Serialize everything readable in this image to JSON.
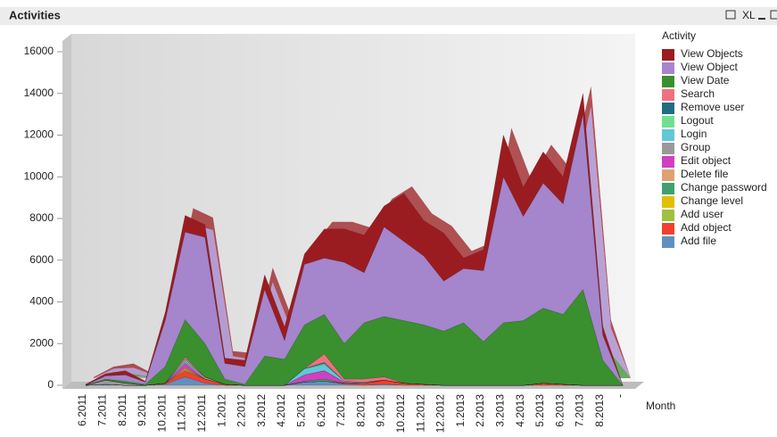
{
  "toolbar": [
    "XL"
  ],
  "chart_data": {
    "type": "area",
    "stacked": true,
    "title": "Activities",
    "xlabel": "Month",
    "legend_title": "Activity",
    "categories": [
      "6.2011",
      "7.2011",
      "8.2011",
      "9.2011",
      "10.2011",
      "11.2011",
      "12.2011",
      "1.2012",
      "2.2012",
      "3.2012",
      "4.2012",
      "5.2012",
      "6.2012",
      "7.2012",
      "8.2012",
      "9.2012",
      "10.2012",
      "11.2012",
      "12.2012",
      "1.2013",
      "2.2013",
      "3.2013",
      "4.2013",
      "5.2013",
      "6.2013",
      "7.2013",
      "8.2013",
      "-"
    ],
    "ylim": [
      0,
      16000
    ],
    "yticks": [
      0,
      2000,
      4000,
      6000,
      8000,
      10000,
      12000,
      14000,
      16000
    ],
    "series": [
      {
        "name": "View Objects",
        "color": "#9b1c20",
        "values": [
          50,
          100,
          200,
          50,
          400,
          800,
          600,
          250,
          300,
          700,
          650,
          500,
          1400,
          1600,
          1800,
          1000,
          2300,
          1700,
          2300,
          500,
          1000,
          2000,
          1400,
          1500,
          1300,
          1000,
          400,
          0
        ]
      },
      {
        "name": "View Object",
        "color": "#a585cc",
        "values": [
          0,
          150,
          300,
          100,
          2200,
          4200,
          5100,
          750,
          850,
          3200,
          900,
          2900,
          2700,
          3900,
          2400,
          4300,
          3800,
          3300,
          2400,
          2600,
          3400,
          7000,
          5000,
          6000,
          5300,
          8400,
          1200,
          0
        ]
      },
      {
        "name": "View Date",
        "color": "#3a8f2e",
        "values": [
          0,
          50,
          100,
          50,
          800,
          1800,
          1600,
          250,
          50,
          1400,
          1250,
          2100,
          1900,
          1700,
          2700,
          2900,
          3000,
          2850,
          2600,
          3000,
          2100,
          3000,
          3100,
          3600,
          3350,
          4600,
          1200,
          0
        ]
      },
      {
        "name": "Search",
        "color": "#f07080",
        "values": [
          0,
          0,
          0,
          0,
          0,
          100,
          0,
          0,
          0,
          0,
          0,
          0,
          400,
          100,
          150,
          150,
          0,
          0,
          0,
          0,
          0,
          0,
          0,
          0,
          0,
          0,
          0,
          0
        ]
      },
      {
        "name": "Remove user",
        "color": "#1f6d80",
        "values": [
          0,
          0,
          0,
          0,
          0,
          0,
          0,
          0,
          0,
          0,
          0,
          0,
          50,
          0,
          0,
          0,
          0,
          0,
          0,
          0,
          0,
          0,
          0,
          0,
          0,
          0,
          0,
          0
        ]
      },
      {
        "name": "Logout",
        "color": "#70e090",
        "values": [
          0,
          0,
          0,
          0,
          0,
          0,
          0,
          0,
          0,
          0,
          0,
          0,
          50,
          0,
          0,
          0,
          0,
          0,
          0,
          0,
          0,
          0,
          0,
          0,
          0,
          0,
          0,
          0
        ]
      },
      {
        "name": "Login",
        "color": "#60c8d8",
        "values": [
          0,
          0,
          0,
          0,
          0,
          100,
          0,
          0,
          0,
          0,
          0,
          300,
          300,
          50,
          50,
          0,
          0,
          0,
          0,
          0,
          0,
          0,
          0,
          0,
          0,
          0,
          0,
          0
        ]
      },
      {
        "name": "Group",
        "color": "#999999",
        "values": [
          0,
          200,
          100,
          0,
          0,
          100,
          100,
          0,
          0,
          0,
          0,
          0,
          0,
          0,
          0,
          0,
          0,
          0,
          0,
          0,
          0,
          0,
          0,
          0,
          0,
          0,
          0,
          0
        ]
      },
      {
        "name": "Edit object",
        "color": "#d040c0",
        "values": [
          0,
          0,
          0,
          0,
          0,
          200,
          0,
          0,
          0,
          0,
          0,
          300,
          400,
          50,
          0,
          0,
          0,
          0,
          0,
          0,
          0,
          0,
          0,
          0,
          0,
          0,
          0,
          0
        ]
      },
      {
        "name": "Delete file",
        "color": "#e0a070",
        "values": [
          0,
          0,
          0,
          0,
          0,
          50,
          0,
          0,
          0,
          0,
          0,
          0,
          0,
          0,
          0,
          0,
          0,
          0,
          0,
          0,
          0,
          0,
          0,
          0,
          0,
          0,
          0,
          0
        ]
      },
      {
        "name": "Change password",
        "color": "#40a070",
        "values": [
          0,
          0,
          0,
          0,
          0,
          0,
          0,
          0,
          0,
          0,
          0,
          50,
          100,
          0,
          0,
          0,
          0,
          0,
          0,
          0,
          0,
          0,
          0,
          0,
          0,
          0,
          0,
          0
        ]
      },
      {
        "name": "Change level",
        "color": "#e0c000",
        "values": [
          0,
          0,
          0,
          0,
          0,
          50,
          0,
          0,
          0,
          0,
          0,
          0,
          0,
          0,
          0,
          0,
          0,
          0,
          0,
          0,
          0,
          0,
          0,
          0,
          0,
          0,
          0,
          0
        ]
      },
      {
        "name": "Add user",
        "color": "#a0c040",
        "values": [
          0,
          0,
          0,
          0,
          0,
          50,
          0,
          0,
          0,
          0,
          0,
          0,
          0,
          0,
          0,
          0,
          0,
          0,
          0,
          0,
          0,
          0,
          0,
          0,
          0,
          0,
          0,
          0
        ]
      },
      {
        "name": "Add object",
        "color": "#f04030",
        "values": [
          0,
          0,
          0,
          0,
          50,
          300,
          200,
          50,
          0,
          0,
          0,
          0,
          0,
          50,
          100,
          200,
          100,
          50,
          0,
          0,
          0,
          0,
          0,
          100,
          50,
          0,
          0,
          0
        ]
      },
      {
        "name": "Add file",
        "color": "#6090c0",
        "values": [
          0,
          50,
          0,
          0,
          50,
          400,
          100,
          0,
          0,
          0,
          0,
          150,
          200,
          50,
          0,
          50,
          0,
          0,
          0,
          0,
          0,
          0,
          0,
          0,
          0,
          0,
          0,
          0
        ]
      }
    ]
  }
}
